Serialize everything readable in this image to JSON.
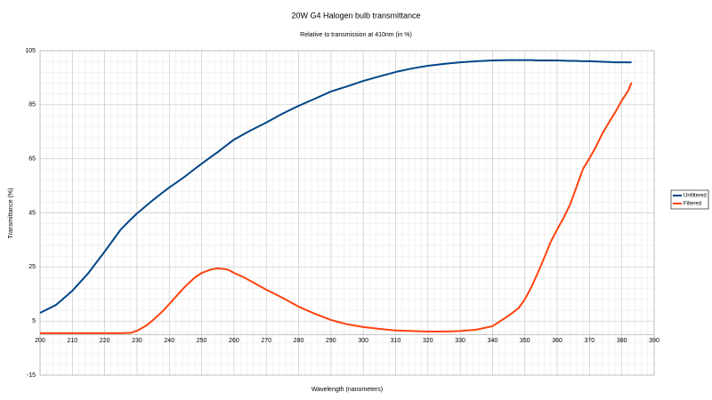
{
  "chart_data": {
    "type": "line",
    "title": "20W G4 Halogen bulb transmittance",
    "subtitle": "Relative to transmission at 410nm (in %)",
    "x_label": "Wavelength (nanometers)",
    "y_label": "Transmittance (%)",
    "x": [
      200,
      205,
      210,
      215,
      220,
      225,
      228,
      230,
      233,
      235,
      238,
      240,
      243,
      245,
      248,
      250,
      253,
      255,
      258,
      260,
      263,
      265,
      270,
      275,
      280,
      285,
      290,
      295,
      300,
      305,
      310,
      315,
      320,
      325,
      330,
      335,
      340,
      345,
      348,
      350,
      352,
      354,
      356,
      358,
      360,
      362,
      364,
      366,
      368,
      370,
      372,
      374,
      376,
      378,
      380,
      382,
      383
    ],
    "series": [
      {
        "name": "Unfiltered",
        "color": "#004586",
        "values": [
          8,
          11,
          16.2,
          22.8,
          30.7,
          38.9,
          42.5,
          44.8,
          47.8,
          49.8,
          52.6,
          54.4,
          56.9,
          58.6,
          61.4,
          63.2,
          65.8,
          67.5,
          70.3,
          72.1,
          74.1,
          75.4,
          78.4,
          81.7,
          84.6,
          87.2,
          89.9,
          91.8,
          93.8,
          95.5,
          97.1,
          98.4,
          99.4,
          100.1,
          100.7,
          101.1,
          101.4,
          101.5,
          101.5,
          101.5,
          101.5,
          101.4,
          101.4,
          101.4,
          101.4,
          101.3,
          101.2,
          101.2,
          101.1,
          101.1,
          101,
          100.9,
          100.8,
          100.7,
          100.7,
          100.7,
          100.7
        ]
      },
      {
        "name": "Filtered",
        "color": "#ff420e",
        "values": [
          0.5,
          0.5,
          0.5,
          0.5,
          0.5,
          0.5,
          0.6,
          1.4,
          3.4,
          5.4,
          8.7,
          11.3,
          15.3,
          17.9,
          21.2,
          22.8,
          24.1,
          24.5,
          24.1,
          22.8,
          21.2,
          19.9,
          16.6,
          13.6,
          10.3,
          7.7,
          5.4,
          3.8,
          2.8,
          2.1,
          1.5,
          1.3,
          1.1,
          1.1,
          1.3,
          1.8,
          3.1,
          7.0,
          9.7,
          13,
          17.5,
          22.8,
          28.4,
          34.3,
          38.9,
          43.2,
          48.1,
          54.7,
          61.3,
          65.2,
          69.5,
          74.4,
          78.4,
          82.3,
          86.6,
          90.2,
          93.2
        ]
      }
    ],
    "xlim": [
      200,
      390
    ],
    "xticks": [
      200,
      210,
      220,
      230,
      240,
      250,
      260,
      270,
      280,
      290,
      300,
      310,
      320,
      330,
      340,
      350,
      360,
      370,
      380,
      390
    ],
    "ylim": [
      -15,
      105
    ],
    "yticks": [
      -15,
      5,
      25,
      45,
      65,
      85,
      105
    ],
    "grid": true,
    "minor_grid": true,
    "legend": "right"
  }
}
